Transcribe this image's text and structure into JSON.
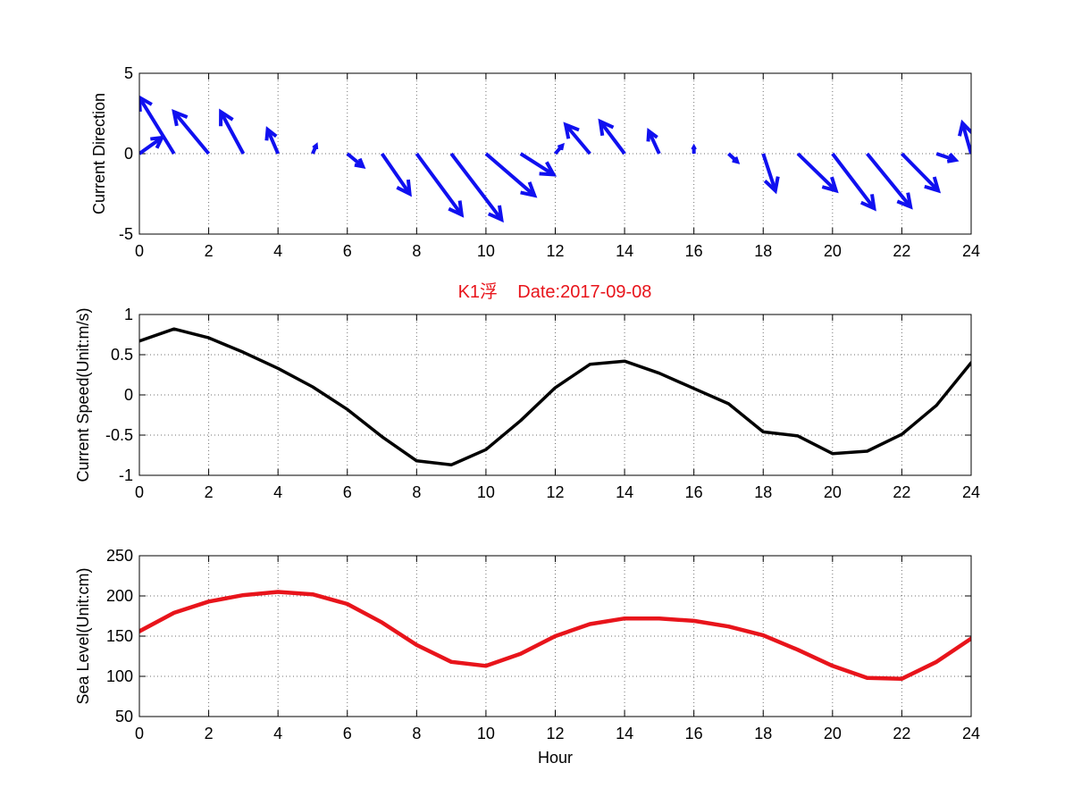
{
  "title": "K1浮    Date:2017-09-08",
  "colors": {
    "direction": "#1010f0",
    "speed": "#000000",
    "level": "#e8141b",
    "title": "#e8141b"
  },
  "chart_data": [
    {
      "id": "direction",
      "type": "quiver",
      "title": "",
      "xlabel": "",
      "ylabel": "Current Direction",
      "xlim": [
        0,
        24
      ],
      "ylim": [
        -5,
        5
      ],
      "xticks": [
        0,
        2,
        4,
        6,
        8,
        10,
        12,
        14,
        16,
        18,
        20,
        22,
        24
      ],
      "yticks": [
        -5,
        0,
        5
      ],
      "grid": true,
      "note_y_units": "vector components (u, v) plotted in data units",
      "x": [
        0,
        1,
        2,
        3,
        4,
        5,
        6,
        7,
        8,
        9,
        10,
        11,
        12,
        13,
        14,
        15,
        16,
        17,
        18,
        19,
        20,
        21,
        22,
        23,
        24
      ],
      "u": [
        0.65,
        -1.0,
        -1.0,
        -0.65,
        -0.3,
        0.1,
        0.45,
        0.8,
        1.3,
        1.45,
        1.4,
        0.95,
        0.2,
        -0.7,
        -0.7,
        -0.3,
        0.0,
        0.25,
        0.35,
        1.1,
        1.2,
        1.25,
        1.05,
        0.55,
        -0.25
      ],
      "v": [
        1.0,
        3.5,
        2.6,
        2.6,
        1.5,
        0.5,
        -0.8,
        -2.5,
        -3.8,
        -4.1,
        -2.6,
        -1.3,
        0.5,
        1.8,
        2.0,
        1.4,
        0.4,
        -0.5,
        -2.3,
        -2.3,
        -3.4,
        -3.3,
        -2.3,
        -0.4,
        1.9
      ]
    },
    {
      "id": "speed",
      "type": "line",
      "title": "",
      "xlabel": "",
      "ylabel": "Current Speed(Unit:m/s)",
      "xlim": [
        0,
        24
      ],
      "ylim": [
        -1,
        1
      ],
      "xticks": [
        0,
        2,
        4,
        6,
        8,
        10,
        12,
        14,
        16,
        18,
        20,
        22,
        24
      ],
      "yticks": [
        -1,
        -0.5,
        0,
        0.5,
        1
      ],
      "grid": true,
      "x": [
        0,
        1,
        2,
        3,
        4,
        5,
        6,
        7,
        8,
        9,
        10,
        11,
        12,
        13,
        14,
        15,
        16,
        17,
        18,
        19,
        20,
        21,
        22,
        23,
        24
      ],
      "y": [
        0.67,
        0.82,
        0.71,
        0.53,
        0.33,
        0.1,
        -0.18,
        -0.52,
        -0.82,
        -0.87,
        -0.68,
        -0.32,
        0.09,
        0.38,
        0.42,
        0.27,
        0.08,
        -0.11,
        -0.46,
        -0.51,
        -0.73,
        -0.7,
        -0.49,
        -0.13,
        0.4
      ]
    },
    {
      "id": "level",
      "type": "line",
      "title": "",
      "xlabel": "Hour",
      "ylabel": "Sea Level(Unit:cm)",
      "xlim": [
        0,
        24
      ],
      "ylim": [
        50,
        250
      ],
      "xticks": [
        0,
        2,
        4,
        6,
        8,
        10,
        12,
        14,
        16,
        18,
        20,
        22,
        24
      ],
      "yticks": [
        50,
        100,
        150,
        200,
        250
      ],
      "grid": true,
      "x": [
        0,
        1,
        2,
        3,
        4,
        5,
        6,
        7,
        8,
        9,
        10,
        11,
        12,
        13,
        14,
        15,
        16,
        17,
        18,
        19,
        20,
        21,
        22,
        23,
        24
      ],
      "y": [
        156,
        179,
        193,
        201,
        205,
        202,
        190,
        167,
        139,
        118,
        113,
        128,
        150,
        165,
        172,
        172,
        169,
        162,
        151,
        133,
        113,
        98,
        97,
        118,
        147
      ]
    }
  ]
}
